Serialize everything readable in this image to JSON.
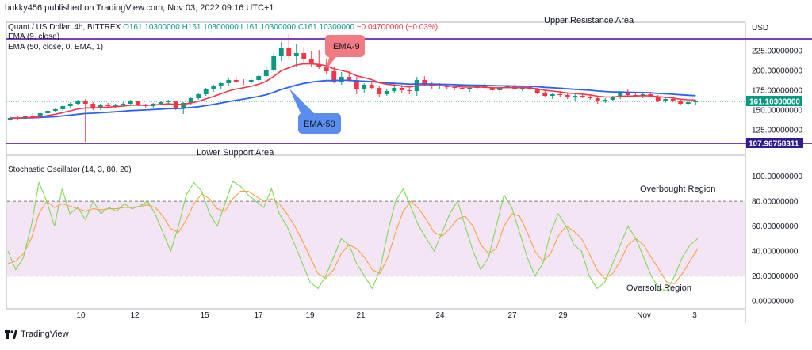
{
  "header": {
    "published_line": "bukky456 published on TradingView.com, Nov 03, 2022 09:16 UTC+1"
  },
  "legend": {
    "symbol": "Quant / US Dollar, 4h, BITTREX",
    "ohlc": "O161.10300000  H161.10300000  L161.10300000  C161.10300000",
    "change": "−0.04700000 (−0.03%)",
    "ema9": "EMA (9, close)",
    "ema50": "EMA (50, close, 0, EMA, 1)",
    "stoch": "Stochastic Oscillator (14, 3, 80, 20)"
  },
  "footer": {
    "brand": "TradingView"
  },
  "colors": {
    "bull": "#089981",
    "bear": "#f23645",
    "ema9": "#f23645",
    "ema50": "#2962ff",
    "level_line": "#7e3fbf",
    "stoch_k": "#7ed957",
    "stoch_d": "#ff9f43",
    "stoch_band": "#f3e5f5"
  },
  "chart_data": [
    {
      "type": "candlestick",
      "currency_label": "USD",
      "y_ticks": [
        "225.00000000",
        "200.00000000",
        "175.00000000",
        "150.00000000",
        "125.00000000"
      ],
      "ylim": [
        97,
        249
      ],
      "x_ticks": [
        "10",
        "12",
        "15",
        "17",
        "19",
        "21",
        "24",
        "27",
        "29",
        "Nov",
        "3"
      ],
      "last_price_label": "161.10300000",
      "support_price_label": "107.96758311",
      "levels": {
        "upper": 240,
        "lower": 108
      },
      "annotations": {
        "upper": "Upper Resistance Area",
        "lower": "Lower Support Area",
        "ema9": "EMA-9",
        "ema50": "EMA-50"
      },
      "ohlc": [
        [
          138,
          142,
          136,
          140
        ],
        [
          140,
          143,
          137,
          139
        ],
        [
          139,
          144,
          138,
          143
        ],
        [
          143,
          146,
          140,
          141
        ],
        [
          141,
          147,
          140,
          146
        ],
        [
          146,
          150,
          145,
          149
        ],
        [
          149,
          153,
          147,
          151
        ],
        [
          151,
          156,
          149,
          155
        ],
        [
          155,
          160,
          153,
          158
        ],
        [
          158,
          163,
          156,
          161
        ],
        [
          161,
          164,
          110,
          158
        ],
        [
          158,
          160,
          150,
          152
        ],
        [
          152,
          158,
          150,
          156
        ],
        [
          156,
          159,
          153,
          155
        ],
        [
          155,
          158,
          152,
          157
        ],
        [
          157,
          160,
          154,
          158
        ],
        [
          158,
          163,
          156,
          161
        ],
        [
          161,
          162,
          155,
          156
        ],
        [
          156,
          158,
          152,
          155
        ],
        [
          155,
          159,
          153,
          158
        ],
        [
          158,
          162,
          156,
          160
        ],
        [
          160,
          163,
          157,
          161
        ],
        [
          161,
          162,
          150,
          153
        ],
        [
          153,
          160,
          145,
          159
        ],
        [
          159,
          166,
          157,
          165
        ],
        [
          165,
          172,
          163,
          170
        ],
        [
          170,
          178,
          168,
          176
        ],
        [
          176,
          182,
          173,
          180
        ],
        [
          180,
          186,
          177,
          184
        ],
        [
          184,
          190,
          181,
          188
        ],
        [
          188,
          192,
          184,
          186
        ],
        [
          186,
          189,
          182,
          185
        ],
        [
          185,
          190,
          183,
          188
        ],
        [
          188,
          195,
          186,
          193
        ],
        [
          193,
          204,
          190,
          201
        ],
        [
          201,
          222,
          198,
          218
        ],
        [
          218,
          236,
          212,
          228
        ],
        [
          228,
          246,
          214,
          218
        ],
        [
          218,
          234,
          205,
          222
        ],
        [
          222,
          230,
          210,
          214
        ],
        [
          214,
          224,
          204,
          208
        ],
        [
          208,
          226,
          202,
          205
        ],
        [
          205,
          214,
          196,
          199
        ],
        [
          199,
          204,
          184,
          186
        ],
        [
          186,
          198,
          182,
          192
        ],
        [
          192,
          199,
          186,
          188
        ],
        [
          188,
          192,
          170,
          176
        ],
        [
          176,
          184,
          172,
          182
        ],
        [
          182,
          186,
          176,
          178
        ],
        [
          178,
          181,
          166,
          170
        ],
        [
          170,
          176,
          168,
          174
        ],
        [
          174,
          180,
          172,
          178
        ],
        [
          178,
          182,
          172,
          175
        ],
        [
          175,
          178,
          170,
          174
        ],
        [
          174,
          192,
          168,
          188
        ],
        [
          188,
          193,
          180,
          182
        ],
        [
          182,
          186,
          176,
          180
        ],
        [
          180,
          184,
          176,
          181
        ],
        [
          181,
          183,
          177,
          179
        ],
        [
          179,
          182,
          175,
          178
        ],
        [
          178,
          181,
          174,
          176
        ],
        [
          176,
          180,
          173,
          178
        ],
        [
          178,
          182,
          175,
          180
        ],
        [
          180,
          184,
          177,
          178
        ],
        [
          178,
          181,
          173,
          175
        ],
        [
          175,
          180,
          172,
          178
        ],
        [
          178,
          182,
          176,
          180
        ],
        [
          180,
          183,
          176,
          177
        ],
        [
          177,
          181,
          174,
          179
        ],
        [
          179,
          182,
          175,
          176
        ],
        [
          176,
          178,
          170,
          172
        ],
        [
          172,
          176,
          166,
          168
        ],
        [
          168,
          172,
          164,
          170
        ],
        [
          170,
          174,
          167,
          169
        ],
        [
          169,
          172,
          164,
          166
        ],
        [
          166,
          170,
          162,
          168
        ],
        [
          168,
          171,
          165,
          167
        ],
        [
          167,
          170,
          163,
          165
        ],
        [
          165,
          168,
          158,
          161
        ],
        [
          161,
          165,
          159,
          163
        ],
        [
          163,
          168,
          161,
          166
        ],
        [
          166,
          172,
          164,
          171
        ],
        [
          171,
          176,
          168,
          169
        ],
        [
          169,
          172,
          166,
          168
        ],
        [
          168,
          172,
          165,
          170
        ],
        [
          170,
          173,
          166,
          167
        ],
        [
          167,
          169,
          160,
          162
        ],
        [
          162,
          166,
          159,
          164
        ],
        [
          164,
          167,
          160,
          161
        ],
        [
          161,
          163,
          156,
          158
        ],
        [
          158,
          162,
          155,
          160
        ],
        [
          160,
          163,
          157,
          161
        ]
      ]
    },
    {
      "type": "line",
      "title": "Stochastic Oscillator (14, 3, 80, 20)",
      "y_ticks": [
        "100.00000000",
        "80.00000000",
        "60.00000000",
        "40.00000000",
        "20.00000000",
        "0.00000000"
      ],
      "ylim": [
        -5,
        108
      ],
      "bands": [
        20,
        80
      ],
      "annotations": {
        "overbought": "Overbought Region",
        "oversold": "Oversold Region"
      },
      "series": [
        {
          "values": [
            40,
            25,
            35,
            60,
            95,
            80,
            60,
            90,
            70,
            75,
            65,
            80,
            70,
            75,
            72,
            78,
            74,
            76,
            80,
            70,
            55,
            40,
            60,
            85,
            95,
            88,
            70,
            60,
            78,
            96,
            92,
            85,
            80,
            75,
            90,
            70,
            60,
            45,
            30,
            15,
            10,
            20,
            35,
            50,
            45,
            30,
            20,
            10,
            25,
            55,
            80,
            90,
            75,
            60,
            50,
            40,
            55,
            70,
            80,
            60,
            40,
            25,
            35,
            60,
            85,
            75,
            55,
            35,
            20,
            30,
            55,
            70,
            60,
            45,
            40,
            20,
            10,
            15,
            30,
            45,
            60,
            50,
            35,
            20,
            10,
            8,
            20,
            35,
            45,
            50
          ]
        },
        {
          "values": [
            30,
            32,
            38,
            50,
            70,
            80,
            75,
            78,
            76,
            74,
            72,
            74,
            73,
            74,
            74,
            75,
            75,
            76,
            77,
            75,
            68,
            58,
            55,
            65,
            78,
            86,
            82,
            74,
            72,
            82,
            88,
            88,
            84,
            80,
            82,
            78,
            70,
            60,
            48,
            35,
            22,
            18,
            25,
            38,
            45,
            42,
            35,
            25,
            22,
            35,
            55,
            72,
            80,
            74,
            65,
            55,
            52,
            58,
            66,
            68,
            60,
            45,
            38,
            42,
            60,
            70,
            68,
            55,
            40,
            32,
            38,
            52,
            60,
            56,
            50,
            38,
            25,
            18,
            22,
            32,
            45,
            50,
            45,
            35,
            25,
            15,
            14,
            22,
            32,
            42
          ]
        }
      ]
    }
  ]
}
